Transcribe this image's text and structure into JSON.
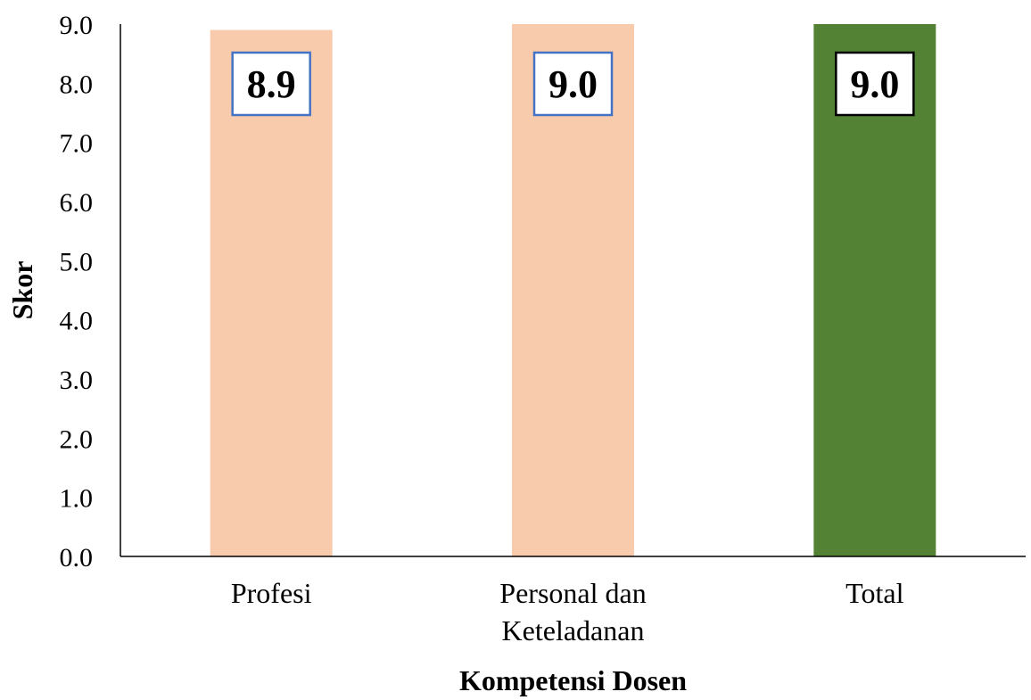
{
  "chart_data": {
    "type": "bar",
    "title": "",
    "xlabel": "Kompetensi Dosen",
    "ylabel": "Skor",
    "categories": [
      [
        "Profesi"
      ],
      [
        "Personal dan",
        "Keteladanan"
      ],
      [
        "Total"
      ]
    ],
    "values": [
      8.9,
      9.0,
      9.0
    ],
    "data_labels": [
      "8.9",
      "9.0",
      "9.0"
    ],
    "ylim": [
      0,
      9
    ],
    "yticks": [
      "0.0",
      "1.0",
      "2.0",
      "3.0",
      "4.0",
      "5.0",
      "6.0",
      "7.0",
      "8.0",
      "9.0"
    ],
    "bar_colors": [
      "#f8cbad",
      "#f8cbad",
      "#548235"
    ],
    "label_border_colors": [
      "#4472c4",
      "#4472c4",
      "#000000"
    ],
    "grid": false,
    "legend": "none"
  }
}
